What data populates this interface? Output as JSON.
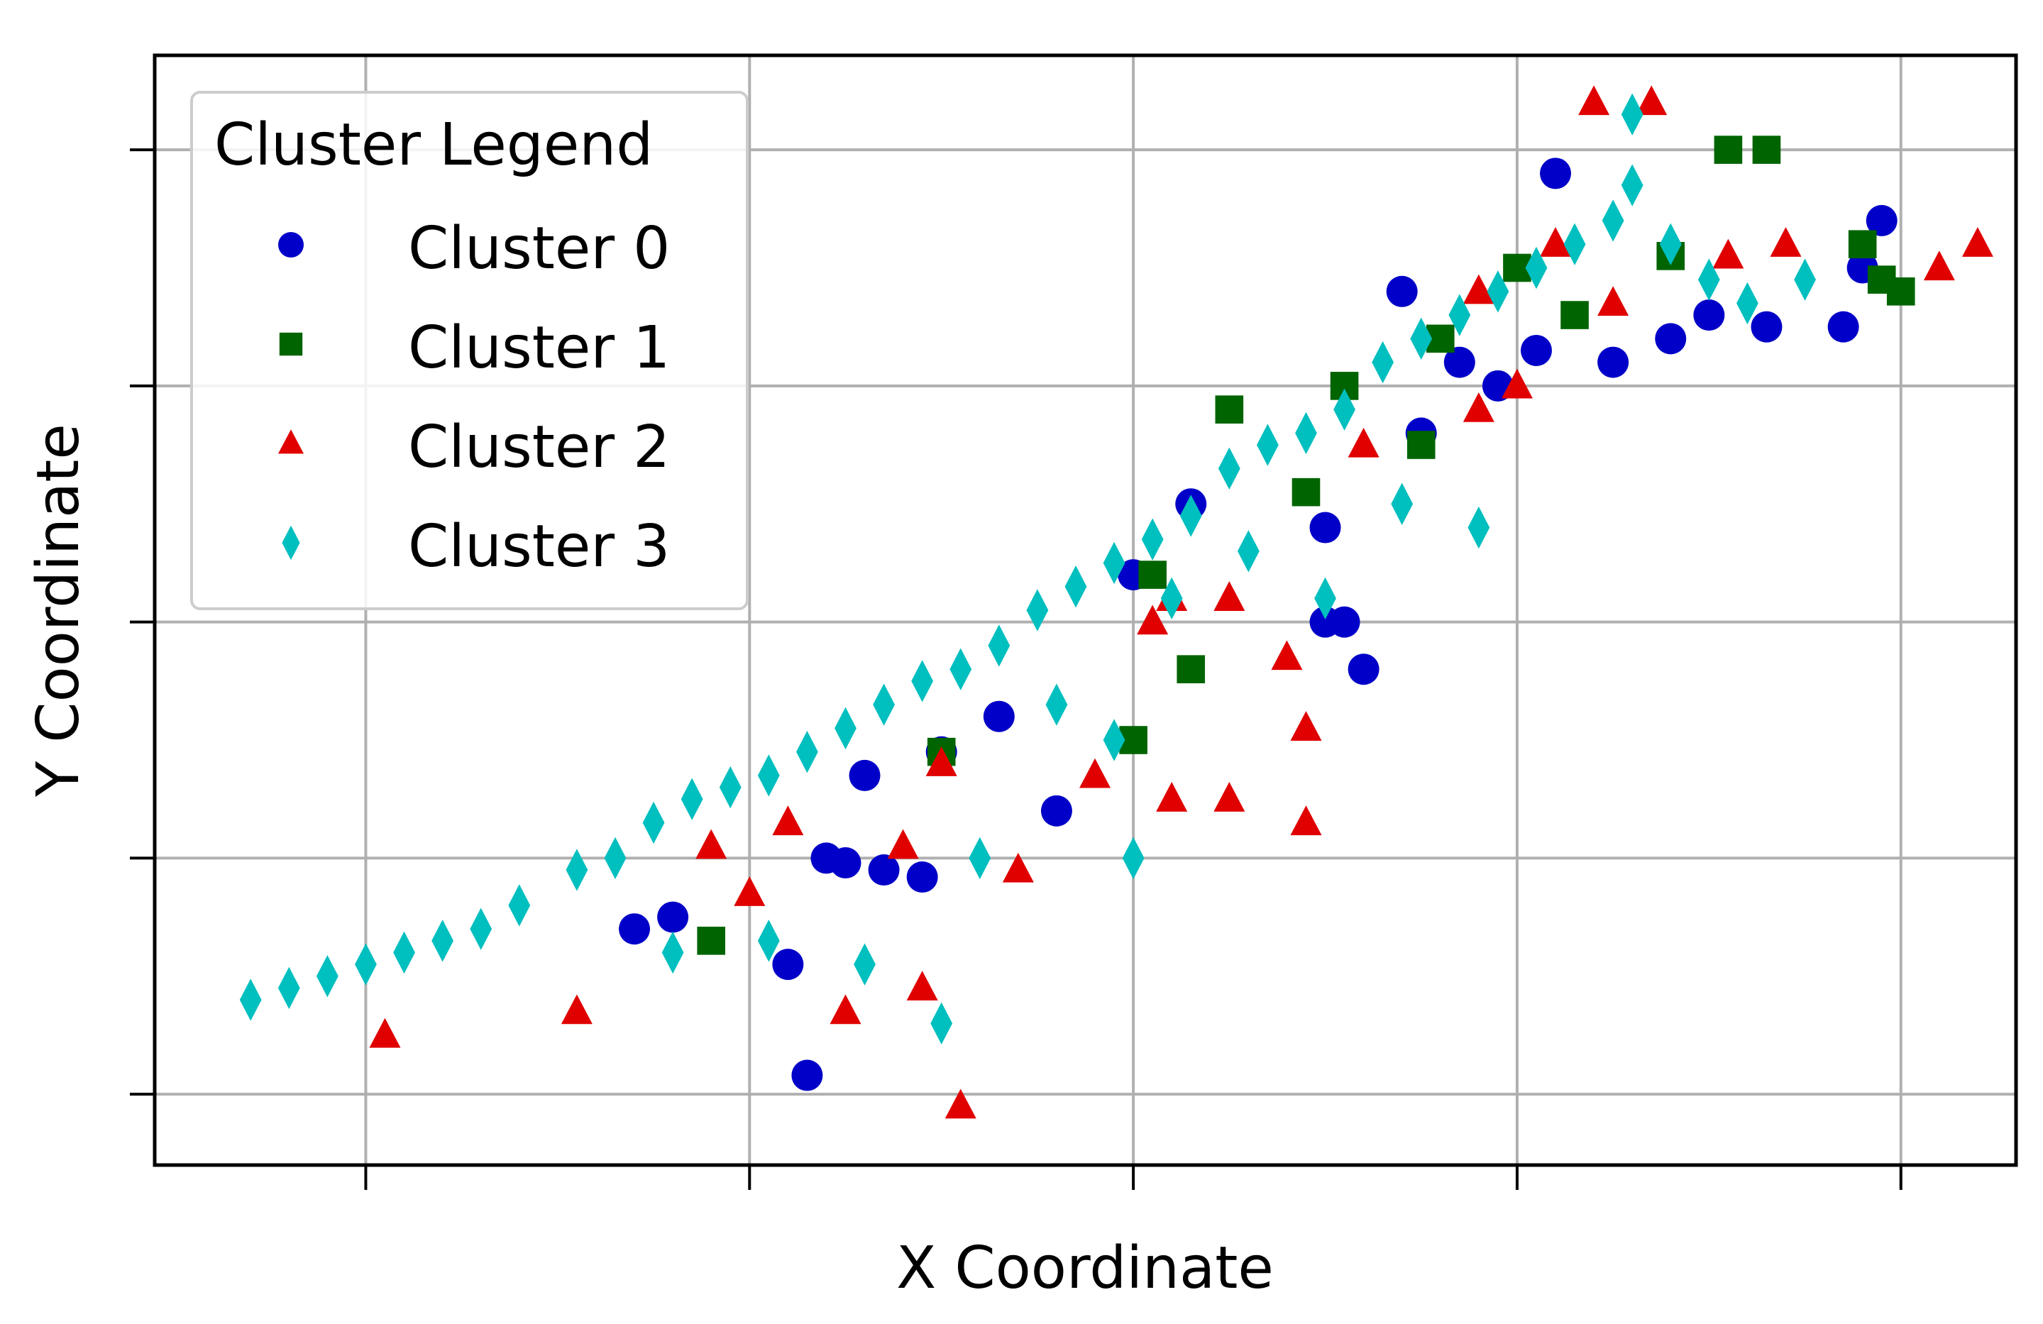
{
  "chart_data": {
    "type": "scatter",
    "title": "",
    "xlabel": "X Coordinate",
    "ylabel": "Y Coordinate",
    "xlim": [
      -0.55,
      4.3
    ],
    "ylim": [
      -0.3,
      4.4
    ],
    "x_ticks": [
      0,
      1,
      2,
      3,
      4
    ],
    "y_ticks": [
      0,
      1,
      2,
      3,
      4
    ],
    "tick_labels_visible": false,
    "grid": true,
    "legend": {
      "title": "Cluster Legend",
      "position": "upper-left"
    },
    "series": [
      {
        "name": "Cluster 0",
        "color": "#0000c8",
        "marker": "circle",
        "points": [
          [
            2.0,
            2.2
          ],
          [
            2.55,
            2.0
          ],
          [
            2.6,
            1.8
          ],
          [
            1.2,
            1.0
          ],
          [
            1.25,
            0.98
          ],
          [
            1.35,
            0.95
          ],
          [
            1.45,
            0.92
          ],
          [
            1.8,
            1.2
          ],
          [
            0.8,
            0.75
          ],
          [
            1.1,
            0.55
          ],
          [
            1.15,
            0.08
          ],
          [
            0.7,
            0.7
          ],
          [
            1.3,
            1.35
          ],
          [
            1.5,
            1.45
          ],
          [
            1.65,
            1.6
          ],
          [
            2.15,
            2.5
          ],
          [
            2.5,
            2.0
          ],
          [
            3.1,
            3.9
          ],
          [
            3.4,
            3.2
          ],
          [
            3.25,
            3.1
          ],
          [
            3.5,
            3.3
          ],
          [
            3.65,
            3.25
          ],
          [
            3.85,
            3.25
          ],
          [
            3.9,
            3.5
          ],
          [
            3.95,
            3.7
          ],
          [
            2.7,
            3.4
          ],
          [
            2.85,
            3.1
          ],
          [
            2.75,
            2.8
          ],
          [
            2.5,
            2.4
          ],
          [
            2.95,
            3.0
          ],
          [
            3.05,
            3.15
          ]
        ]
      },
      {
        "name": "Cluster 1",
        "color": "#006400",
        "marker": "square",
        "points": [
          [
            0.9,
            0.65
          ],
          [
            1.5,
            1.45
          ],
          [
            2.0,
            1.5
          ],
          [
            2.15,
            1.8
          ],
          [
            2.55,
            3.0
          ],
          [
            2.8,
            3.2
          ],
          [
            3.0,
            3.5
          ],
          [
            3.15,
            3.3
          ],
          [
            3.4,
            3.55
          ],
          [
            3.55,
            4.0
          ],
          [
            3.65,
            4.0
          ],
          [
            3.9,
            3.6
          ],
          [
            3.95,
            3.45
          ],
          [
            4.0,
            3.4
          ],
          [
            2.25,
            2.9
          ],
          [
            2.45,
            2.55
          ],
          [
            2.05,
            2.2
          ],
          [
            2.75,
            2.75
          ]
        ]
      },
      {
        "name": "Cluster 2",
        "color": "#e00000",
        "marker": "triangle",
        "points": [
          [
            0.05,
            0.25
          ],
          [
            0.55,
            0.35
          ],
          [
            1.25,
            0.35
          ],
          [
            1.45,
            0.45
          ],
          [
            1.55,
            -0.05
          ],
          [
            0.9,
            1.05
          ],
          [
            1.0,
            0.85
          ],
          [
            1.4,
            1.05
          ],
          [
            1.7,
            0.95
          ],
          [
            1.9,
            1.35
          ],
          [
            2.1,
            1.25
          ],
          [
            2.25,
            1.25
          ],
          [
            2.45,
            1.15
          ],
          [
            2.45,
            1.55
          ],
          [
            2.4,
            1.85
          ],
          [
            2.1,
            2.1
          ],
          [
            2.25,
            2.1
          ],
          [
            2.6,
            2.75
          ],
          [
            2.9,
            2.9
          ],
          [
            3.0,
            3.0
          ],
          [
            3.25,
            3.35
          ],
          [
            3.55,
            3.55
          ],
          [
            3.7,
            3.6
          ],
          [
            4.1,
            3.5
          ],
          [
            4.2,
            3.6
          ],
          [
            3.2,
            4.2
          ],
          [
            3.35,
            4.2
          ],
          [
            2.9,
            3.4
          ],
          [
            3.1,
            3.6
          ],
          [
            2.05,
            2.0
          ],
          [
            1.5,
            1.4
          ],
          [
            1.1,
            1.15
          ]
        ]
      },
      {
        "name": "Cluster 3",
        "color": "#00bfbf",
        "marker": "diamond",
        "points": [
          [
            -0.3,
            0.4
          ],
          [
            -0.2,
            0.45
          ],
          [
            -0.1,
            0.5
          ],
          [
            0.0,
            0.55
          ],
          [
            0.1,
            0.6
          ],
          [
            0.2,
            0.65
          ],
          [
            0.3,
            0.7
          ],
          [
            0.4,
            0.8
          ],
          [
            0.55,
            0.95
          ],
          [
            0.65,
            1.0
          ],
          [
            0.75,
            1.15
          ],
          [
            0.85,
            1.25
          ],
          [
            0.95,
            1.3
          ],
          [
            1.05,
            1.35
          ],
          [
            1.15,
            1.45
          ],
          [
            1.25,
            1.55
          ],
          [
            1.35,
            1.65
          ],
          [
            1.45,
            1.75
          ],
          [
            1.55,
            1.8
          ],
          [
            1.65,
            1.9
          ],
          [
            1.75,
            2.05
          ],
          [
            1.85,
            2.15
          ],
          [
            1.95,
            2.25
          ],
          [
            2.05,
            2.35
          ],
          [
            2.15,
            2.45
          ],
          [
            2.25,
            2.65
          ],
          [
            2.35,
            2.75
          ],
          [
            2.45,
            2.8
          ],
          [
            2.55,
            2.9
          ],
          [
            2.65,
            3.1
          ],
          [
            2.75,
            3.2
          ],
          [
            2.85,
            3.3
          ],
          [
            2.95,
            3.4
          ],
          [
            3.05,
            3.5
          ],
          [
            3.15,
            3.6
          ],
          [
            3.25,
            3.7
          ],
          [
            3.3,
            3.85
          ],
          [
            3.4,
            3.6
          ],
          [
            3.5,
            3.45
          ],
          [
            3.6,
            3.35
          ],
          [
            3.75,
            3.45
          ],
          [
            3.3,
            4.15
          ],
          [
            2.7,
            2.5
          ],
          [
            2.9,
            2.4
          ],
          [
            2.5,
            2.1
          ],
          [
            1.95,
            1.5
          ],
          [
            1.6,
            1.0
          ],
          [
            1.5,
            0.3
          ],
          [
            1.3,
            0.55
          ],
          [
            2.0,
            1.0
          ],
          [
            1.05,
            0.65
          ],
          [
            0.8,
            0.6
          ],
          [
            2.1,
            2.1
          ],
          [
            2.3,
            2.3
          ],
          [
            1.8,
            1.65
          ]
        ]
      }
    ]
  }
}
